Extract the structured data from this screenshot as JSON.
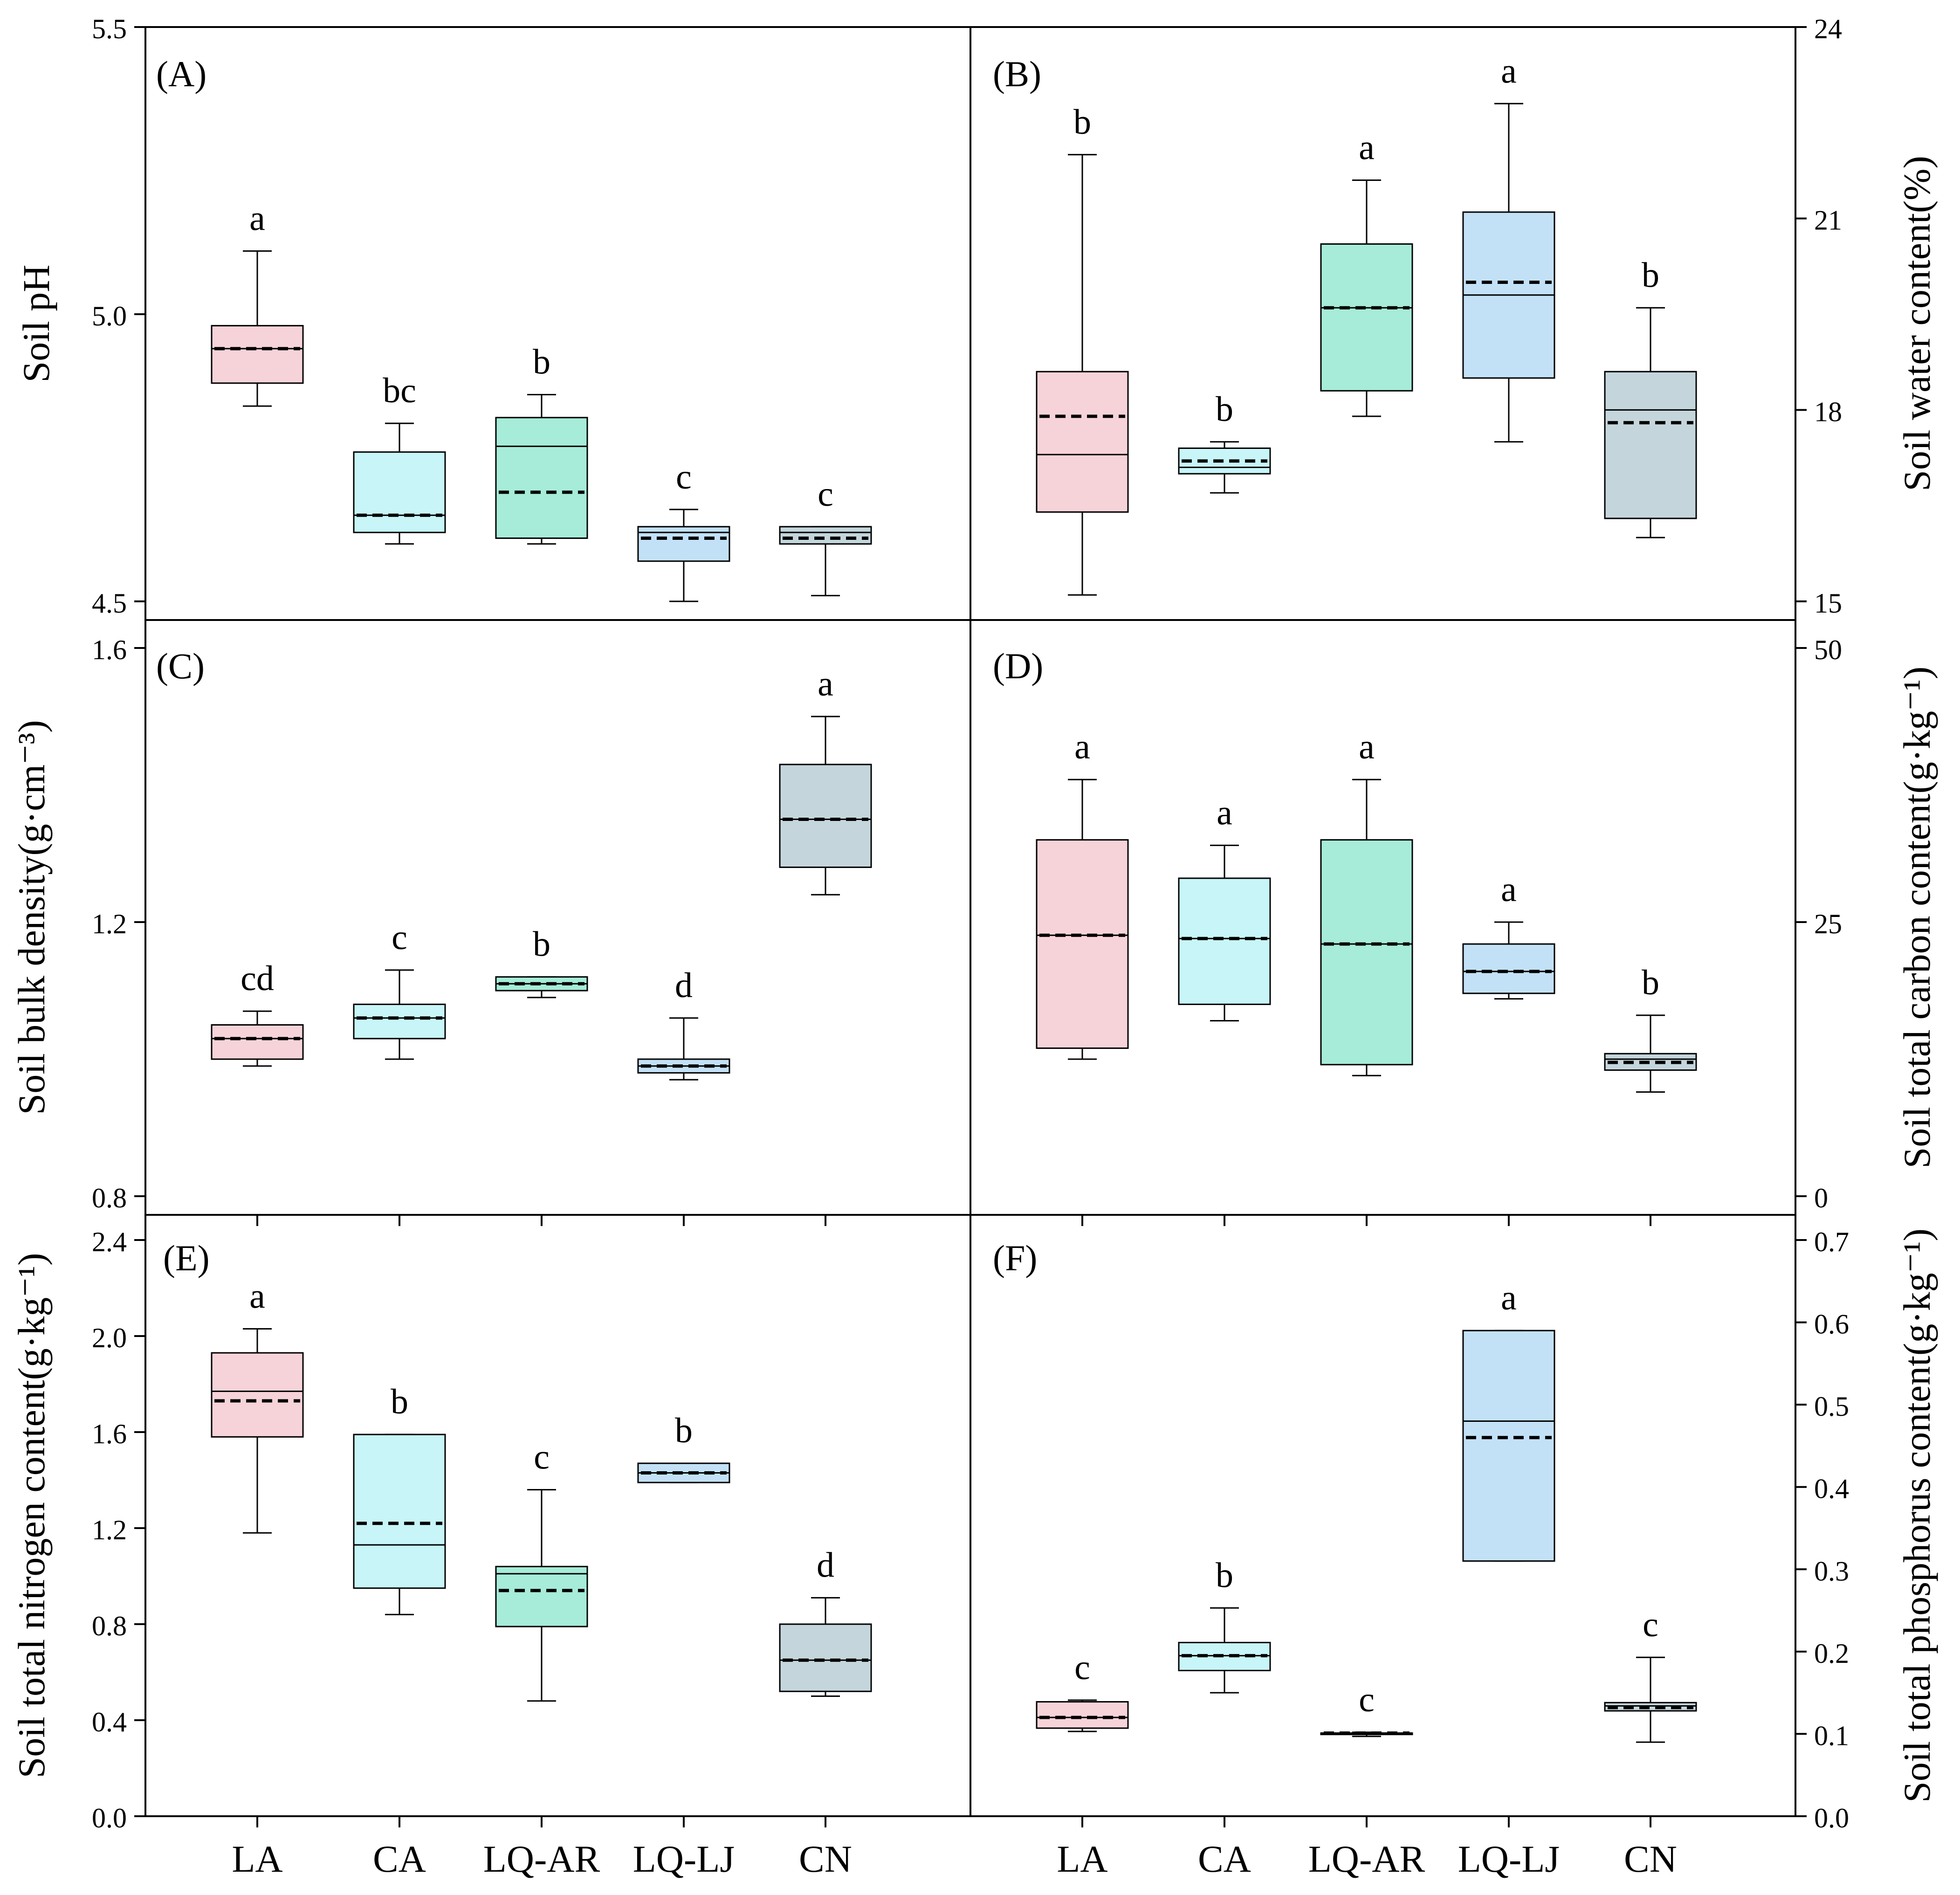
{
  "chart_data": [
    {
      "panel": "(A)",
      "type": "box",
      "ylabel": "Soil pH",
      "ylim": [
        4.5,
        5.5
      ],
      "ticks": [
        4.5,
        5.0,
        5.5
      ],
      "tick_labels": [
        "4.5",
        "5.0",
        "5.5"
      ],
      "categories": [
        "LA",
        "CA",
        "LQ-AR",
        "LQ-LJ",
        "CN"
      ],
      "colors": [
        "#f6d3d9",
        "#c7f5f8",
        "#a6ecd8",
        "#c3e1f6",
        "#c4d6dc"
      ],
      "boxes": [
        {
          "category": "LA",
          "whisker_low": 4.84,
          "q1": 4.88,
          "median": 4.94,
          "q3": 4.98,
          "whisker_high": 5.11,
          "mean": 4.94,
          "letter": "a"
        },
        {
          "category": "CA",
          "whisker_low": 4.6,
          "q1": 4.62,
          "median": 4.65,
          "q3": 4.76,
          "whisker_high": 4.81,
          "mean": 4.65,
          "letter": "bc"
        },
        {
          "category": "LQ-AR",
          "whisker_low": 4.6,
          "q1": 4.61,
          "median": 4.77,
          "q3": 4.82,
          "whisker_high": 4.86,
          "mean": 4.69,
          "letter": "b"
        },
        {
          "category": "LQ-LJ",
          "whisker_low": 4.5,
          "q1": 4.57,
          "median": 4.62,
          "q3": 4.63,
          "whisker_high": 4.66,
          "mean": 4.61,
          "letter": "c"
        },
        {
          "category": "CN",
          "whisker_low": 4.51,
          "q1": 4.6,
          "median": 4.62,
          "q3": 4.63,
          "whisker_high": 4.63,
          "mean": 4.61,
          "letter": "c"
        }
      ]
    },
    {
      "panel": "(B)",
      "type": "box",
      "ylabel": "Soil water content(%)",
      "ylim": [
        15,
        24
      ],
      "ticks": [
        15,
        18,
        21,
        24
      ],
      "tick_labels": [
        "15",
        "18",
        "21",
        "24"
      ],
      "categories": [
        "LA",
        "CA",
        "LQ-AR",
        "LQ-LJ",
        "CN"
      ],
      "colors": [
        "#f6d3d9",
        "#c7f5f8",
        "#a6ecd8",
        "#c3e1f6",
        "#c4d6dc"
      ],
      "boxes": [
        {
          "category": "LA",
          "whisker_low": 15.1,
          "q1": 16.4,
          "median": 17.3,
          "q3": 18.6,
          "whisker_high": 22.0,
          "mean": 17.9,
          "letter": "b"
        },
        {
          "category": "CA",
          "whisker_low": 16.7,
          "q1": 17.0,
          "median": 17.1,
          "q3": 17.4,
          "whisker_high": 17.5,
          "mean": 17.2,
          "letter": "b"
        },
        {
          "category": "LQ-AR",
          "whisker_low": 17.9,
          "q1": 18.3,
          "median": 19.6,
          "q3": 20.6,
          "whisker_high": 21.6,
          "mean": 19.6,
          "letter": "a"
        },
        {
          "category": "LQ-LJ",
          "whisker_low": 17.5,
          "q1": 18.5,
          "median": 19.8,
          "q3": 21.1,
          "whisker_high": 22.8,
          "mean": 20.0,
          "letter": "a"
        },
        {
          "category": "CN",
          "whisker_low": 16.0,
          "q1": 16.3,
          "median": 18.0,
          "q3": 18.6,
          "whisker_high": 19.6,
          "mean": 17.8,
          "letter": "b"
        }
      ]
    },
    {
      "panel": "(C)",
      "type": "box",
      "ylabel": "Soil bulk density(g·cm⁻³)",
      "ylim": [
        0.8,
        1.6
      ],
      "ticks": [
        0.8,
        1.2,
        1.6
      ],
      "tick_labels": [
        "0.8",
        "1.2",
        "1.6"
      ],
      "categories": [
        "LA",
        "CA",
        "LQ-AR",
        "LQ-LJ",
        "CN"
      ],
      "colors": [
        "#f6d3d9",
        "#c7f5f8",
        "#a6ecd8",
        "#c3e1f6",
        "#c4d6dc"
      ],
      "boxes": [
        {
          "category": "LA",
          "whisker_low": 0.99,
          "q1": 1.0,
          "median": 1.03,
          "q3": 1.05,
          "whisker_high": 1.07,
          "mean": 1.03,
          "letter": "cd"
        },
        {
          "category": "CA",
          "whisker_low": 1.0,
          "q1": 1.03,
          "median": 1.06,
          "q3": 1.08,
          "whisker_high": 1.13,
          "mean": 1.06,
          "letter": "c"
        },
        {
          "category": "LQ-AR",
          "whisker_low": 1.09,
          "q1": 1.1,
          "median": 1.11,
          "q3": 1.12,
          "whisker_high": 1.12,
          "mean": 1.11,
          "letter": "b"
        },
        {
          "category": "LQ-LJ",
          "whisker_low": 0.97,
          "q1": 0.98,
          "median": 0.99,
          "q3": 1.0,
          "whisker_high": 1.06,
          "mean": 0.99,
          "letter": "d"
        },
        {
          "category": "CN",
          "whisker_low": 1.24,
          "q1": 1.28,
          "median": 1.35,
          "q3": 1.43,
          "whisker_high": 1.5,
          "mean": 1.35,
          "letter": "a"
        }
      ]
    },
    {
      "panel": "(D)",
      "type": "box",
      "ylabel": "Soil total carbon content(g·kg⁻¹)",
      "ylim": [
        0,
        50
      ],
      "ticks": [
        0,
        25,
        50
      ],
      "tick_labels": [
        "0",
        "25",
        "50"
      ],
      "categories": [
        "LA",
        "CA",
        "LQ-AR",
        "LQ-LJ",
        "CN"
      ],
      "colors": [
        "#f6d3d9",
        "#c7f5f8",
        "#a6ecd8",
        "#c3e1f6",
        "#c4d6dc"
      ],
      "boxes": [
        {
          "category": "LA",
          "whisker_low": 12.5,
          "q1": 13.5,
          "median": 23.8,
          "q3": 32.5,
          "whisker_high": 38.0,
          "mean": 23.8,
          "letter": "a"
        },
        {
          "category": "CA",
          "whisker_low": 16.0,
          "q1": 17.5,
          "median": 23.5,
          "q3": 29.0,
          "whisker_high": 32.0,
          "mean": 23.5,
          "letter": "a"
        },
        {
          "category": "LQ-AR",
          "whisker_low": 11.0,
          "q1": 12.0,
          "median": 23.0,
          "q3": 32.5,
          "whisker_high": 38.0,
          "mean": 23.0,
          "letter": "a"
        },
        {
          "category": "LQ-LJ",
          "whisker_low": 18.0,
          "q1": 18.5,
          "median": 20.5,
          "q3": 23.0,
          "whisker_high": 25.0,
          "mean": 20.5,
          "letter": "a"
        },
        {
          "category": "CN",
          "whisker_low": 9.5,
          "q1": 11.5,
          "median": 12.5,
          "q3": 13.0,
          "whisker_high": 16.5,
          "mean": 12.2,
          "letter": "b"
        }
      ]
    },
    {
      "panel": "(E)",
      "type": "box",
      "ylabel": "Soil total nitrogen content(g·kg⁻¹)",
      "ylim": [
        0.0,
        2.4
      ],
      "ticks": [
        0.0,
        0.4,
        0.8,
        1.2,
        1.6,
        2.0,
        2.4
      ],
      "tick_labels": [
        "0.0",
        "0.4",
        "0.8",
        "1.2",
        "1.6",
        "2.0",
        "2.4"
      ],
      "categories": [
        "LA",
        "CA",
        "LQ-AR",
        "LQ-LJ",
        "CN"
      ],
      "colors": [
        "#f6d3d9",
        "#c7f5f8",
        "#a6ecd8",
        "#c3e1f6",
        "#c4d6dc"
      ],
      "boxes": [
        {
          "category": "LA",
          "whisker_low": 1.18,
          "q1": 1.58,
          "median": 1.77,
          "q3": 1.93,
          "whisker_high": 2.03,
          "mean": 1.73,
          "letter": "a"
        },
        {
          "category": "CA",
          "whisker_low": 0.84,
          "q1": 0.95,
          "median": 1.13,
          "q3": 1.59,
          "whisker_high": 1.59,
          "mean": 1.22,
          "letter": "b"
        },
        {
          "category": "LQ-AR",
          "whisker_low": 0.48,
          "q1": 0.79,
          "median": 1.01,
          "q3": 1.04,
          "whisker_high": 1.36,
          "mean": 0.94,
          "letter": "c"
        },
        {
          "category": "LQ-LJ",
          "whisker_low": 1.39,
          "q1": 1.39,
          "median": 1.43,
          "q3": 1.47,
          "whisker_high": 1.47,
          "mean": 1.43,
          "letter": "b"
        },
        {
          "category": "CN",
          "whisker_low": 0.5,
          "q1": 0.52,
          "median": 0.65,
          "q3": 0.8,
          "whisker_high": 0.91,
          "mean": 0.65,
          "letter": "d"
        }
      ]
    },
    {
      "panel": "(F)",
      "type": "box",
      "ylabel": "Soil total phosphorus content(g·kg⁻¹)",
      "ylim": [
        0.0,
        0.7
      ],
      "ticks": [
        0.0,
        0.1,
        0.2,
        0.3,
        0.4,
        0.5,
        0.6,
        0.7
      ],
      "tick_labels": [
        "0.0",
        "0.1",
        "0.2",
        "0.3",
        "0.4",
        "0.5",
        "0.6",
        "0.7"
      ],
      "categories": [
        "LA",
        "CA",
        "LQ-AR",
        "LQ-LJ",
        "CN"
      ],
      "colors": [
        "#f6d3d9",
        "#c7f5f8",
        "#a6ecd8",
        "#c3e1f6",
        "#c4d6dc"
      ],
      "boxes": [
        {
          "category": "LA",
          "whisker_low": 0.103,
          "q1": 0.107,
          "median": 0.12,
          "q3": 0.139,
          "whisker_high": 0.141,
          "mean": 0.12,
          "letter": "c"
        },
        {
          "category": "CA",
          "whisker_low": 0.15,
          "q1": 0.177,
          "median": 0.195,
          "q3": 0.211,
          "whisker_high": 0.253,
          "mean": 0.195,
          "letter": "b"
        },
        {
          "category": "LQ-AR",
          "whisker_low": 0.097,
          "q1": 0.1,
          "median": 0.101,
          "q3": 0.101,
          "whisker_high": 0.102,
          "mean": 0.101,
          "letter": "c"
        },
        {
          "category": "LQ-LJ",
          "whisker_low": 0.31,
          "q1": 0.31,
          "median": 0.48,
          "q3": 0.59,
          "whisker_high": 0.59,
          "mean": 0.46,
          "letter": "a"
        },
        {
          "category": "CN",
          "whisker_low": 0.09,
          "q1": 0.128,
          "median": 0.134,
          "q3": 0.138,
          "whisker_high": 0.193,
          "mean": 0.132,
          "letter": "c"
        }
      ]
    }
  ]
}
